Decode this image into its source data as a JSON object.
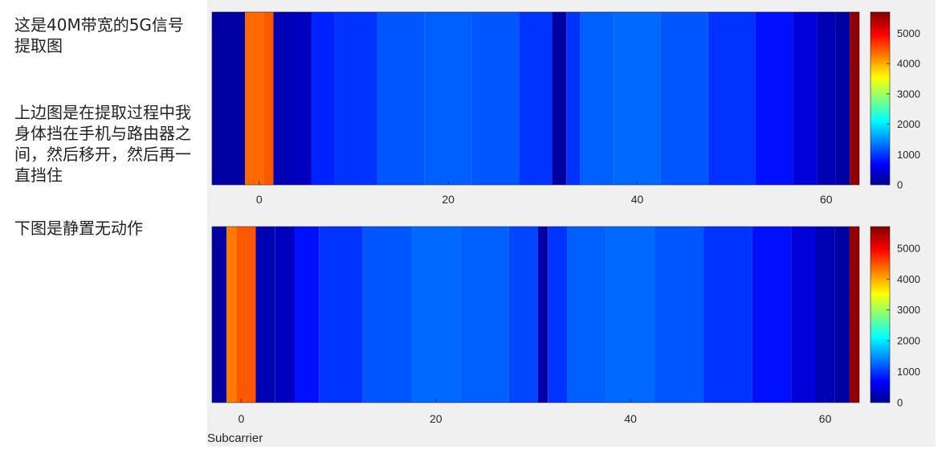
{
  "notes": {
    "line1": "这是40M带宽的5G信号提取图",
    "line2": "上边图是在提取过程中我身体挡在手机与路由器之间，然后移开，然后再一直挡住",
    "line3": "下图是静置无动作"
  },
  "colors": {
    "figure_bg": "#f0f0f0",
    "axes_frame": "#262626",
    "colormap": [
      "#00008f",
      "#0000ff",
      "#00ffff",
      "#ffff00",
      "#ff0000",
      "#800000"
    ]
  },
  "chart_data": [
    {
      "type": "heatmap",
      "title": "",
      "xlabel": "",
      "ylabel": "",
      "xlim": [
        -5,
        63.5
      ],
      "x_ticks": [
        "0",
        "20",
        "40",
        "60"
      ],
      "colorbar": {
        "range": [
          0,
          5700
        ],
        "ticks": [
          "0",
          "1000",
          "2000",
          "3000",
          "4000",
          "5000"
        ],
        "colormap": "jet"
      },
      "subcarrier_profile": [
        {
          "x": -2,
          "value": 200
        },
        {
          "x": -1,
          "value": 4400
        },
        {
          "x": 0,
          "value": 4400
        },
        {
          "x": 1,
          "value": 4500
        },
        {
          "x": 2,
          "value": 300
        },
        {
          "x": 5,
          "value": 350
        },
        {
          "x": 6,
          "value": 900
        },
        {
          "x": 10,
          "value": 1000
        },
        {
          "x": 15,
          "value": 1200
        },
        {
          "x": 20,
          "value": 1250
        },
        {
          "x": 25,
          "value": 1200
        },
        {
          "x": 30,
          "value": 1000
        },
        {
          "x": 32,
          "value": 200
        },
        {
          "x": 33,
          "value": 1000
        },
        {
          "x": 35,
          "value": 1250
        },
        {
          "x": 40,
          "value": 1300
        },
        {
          "x": 45,
          "value": 1200
        },
        {
          "x": 50,
          "value": 1000
        },
        {
          "x": 55,
          "value": 800
        },
        {
          "x": 58,
          "value": 500
        },
        {
          "x": 60,
          "value": 300
        },
        {
          "x": 62,
          "value": 200
        },
        {
          "x": 63,
          "value": 5600
        }
      ]
    },
    {
      "type": "heatmap",
      "title": "",
      "xlabel": "Subcarrier",
      "ylabel": "",
      "xlim": [
        -3,
        63.5
      ],
      "x_ticks": [
        "0",
        "20",
        "40",
        "60"
      ],
      "colorbar": {
        "range": [
          0,
          5700
        ],
        "ticks": [
          "0",
          "1000",
          "2000",
          "3000",
          "4000",
          "5000"
        ],
        "colormap": "jet"
      },
      "subcarrier_profile": [
        {
          "x": -2,
          "value": 200
        },
        {
          "x": -1,
          "value": 4300
        },
        {
          "x": 0,
          "value": 4500
        },
        {
          "x": 1,
          "value": 4500
        },
        {
          "x": 2,
          "value": 300
        },
        {
          "x": 5,
          "value": 350
        },
        {
          "x": 6,
          "value": 800
        },
        {
          "x": 10,
          "value": 1000
        },
        {
          "x": 15,
          "value": 1200
        },
        {
          "x": 20,
          "value": 1300
        },
        {
          "x": 25,
          "value": 1250
        },
        {
          "x": 30,
          "value": 1100
        },
        {
          "x": 31,
          "value": 200
        },
        {
          "x": 32,
          "value": 1000
        },
        {
          "x": 35,
          "value": 1250
        },
        {
          "x": 40,
          "value": 1300
        },
        {
          "x": 45,
          "value": 1200
        },
        {
          "x": 50,
          "value": 1000
        },
        {
          "x": 55,
          "value": 800
        },
        {
          "x": 58,
          "value": 500
        },
        {
          "x": 60,
          "value": 300
        },
        {
          "x": 62,
          "value": 200
        },
        {
          "x": 63,
          "value": 5600
        }
      ]
    }
  ]
}
